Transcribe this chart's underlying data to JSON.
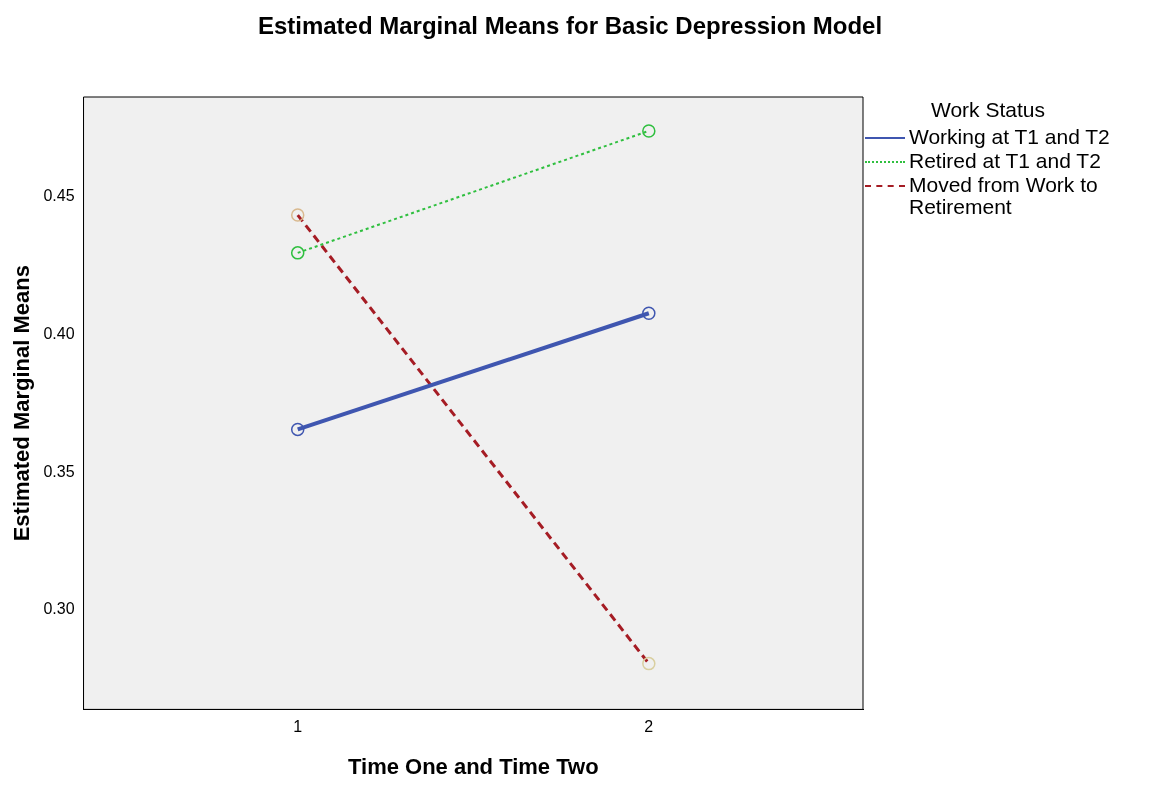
{
  "chart_data": {
    "type": "line",
    "title": "Estimated Marginal Means for Basic Depression Model",
    "xlabel": "Time One and Time Two",
    "ylabel": "Estimated Marginal Means",
    "legend_title": "Work Status",
    "legend": "top right",
    "grid": false,
    "marker": "circle",
    "x": [
      1,
      2
    ],
    "xlim": [
      0.39,
      2.61
    ],
    "xticks": [
      1,
      2
    ],
    "ylim": [
      0.264,
      0.486
    ],
    "yticks": [
      {
        "value": 0.3,
        "label": "0.30"
      },
      {
        "value": 0.35,
        "label": "0.35"
      },
      {
        "value": 0.4,
        "label": "0.40"
      },
      {
        "value": 0.45,
        "label": "0.45"
      }
    ],
    "series": [
      {
        "name": "Working at T1 and T2",
        "color": "#3f56b0",
        "line_style": "solid",
        "values": [
          0.3655,
          0.4076
        ]
      },
      {
        "name": "Retired at T1 and T2",
        "color": "#2fbf3f",
        "line_style": "dotted",
        "values": [
          0.4295,
          0.4737
        ]
      },
      {
        "name": "Moved from Work to Retirement",
        "color": "#a51c24",
        "colors": [
          "#d9b98f",
          "#d9cfa0"
        ],
        "line_style": "dashed",
        "values": [
          0.4432,
          0.2806
        ]
      }
    ]
  }
}
